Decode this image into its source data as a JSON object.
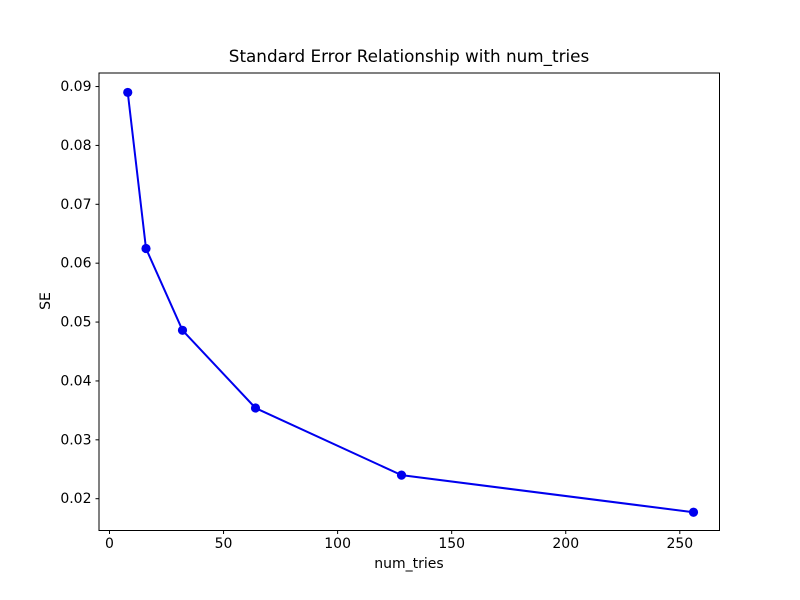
{
  "chart_data": {
    "type": "line",
    "title": "Standard Error Relationship with num_tries",
    "xlabel": "num_tries",
    "ylabel": "SE",
    "x": [
      8,
      16,
      32,
      64,
      128,
      256
    ],
    "y": [
      0.089,
      0.0625,
      0.0486,
      0.0354,
      0.024,
      0.0177
    ],
    "xlim": [
      -4.6,
      267.4
    ],
    "ylim": [
      0.0146,
      0.0923
    ],
    "xticks": {
      "values": [
        0,
        50,
        100,
        150,
        200,
        250
      ],
      "labels": [
        "0",
        "50",
        "100",
        "150",
        "200",
        "250"
      ]
    },
    "yticks": {
      "values": [
        0.02,
        0.03,
        0.04,
        0.05,
        0.06,
        0.07,
        0.08,
        0.09
      ],
      "labels": [
        "0.02",
        "0.03",
        "0.04",
        "0.05",
        "0.06",
        "0.07",
        "0.08",
        "0.09"
      ]
    },
    "line_color": "#0000ee",
    "marker": "o",
    "grid": false,
    "legend": null,
    "background_color": "#ffffff",
    "spine_color": "#000000"
  }
}
